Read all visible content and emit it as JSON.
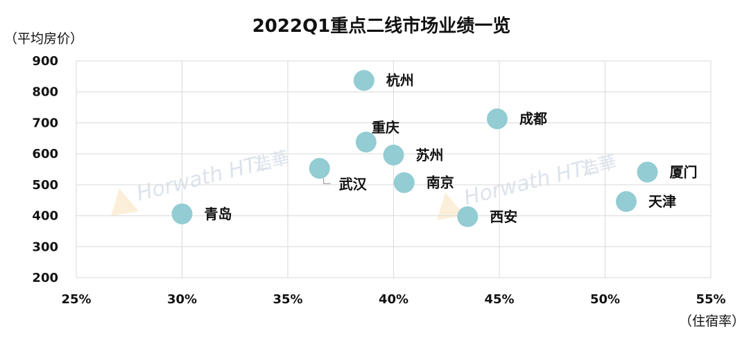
{
  "chart_data": {
    "type": "scatter",
    "title": "2022Q1重点二线市场业绩一览",
    "ylabel": "（平均房价）",
    "xlabel": "（住宿率）",
    "xlim": [
      0.25,
      0.55
    ],
    "ylim": [
      200,
      900
    ],
    "x_ticks": [
      {
        "value": 0.25,
        "label": "25%"
      },
      {
        "value": 0.3,
        "label": "30%"
      },
      {
        "value": 0.35,
        "label": "35%"
      },
      {
        "value": 0.4,
        "label": "40%"
      },
      {
        "value": 0.45,
        "label": "45%"
      },
      {
        "value": 0.5,
        "label": "50%"
      },
      {
        "value": 0.55,
        "label": "55%"
      }
    ],
    "y_ticks": [
      {
        "value": 200,
        "label": "200"
      },
      {
        "value": 300,
        "label": "300"
      },
      {
        "value": 400,
        "label": "400"
      },
      {
        "value": 500,
        "label": "500"
      },
      {
        "value": 600,
        "label": "600"
      },
      {
        "value": 700,
        "label": "700"
      },
      {
        "value": 800,
        "label": "800"
      },
      {
        "value": 900,
        "label": "900"
      }
    ],
    "grid": true,
    "marker_color": "#93ccd3",
    "grid_color": "#d9d9d9",
    "points": [
      {
        "label": "杭州",
        "x": 0.386,
        "y": 837,
        "label_pos": "right"
      },
      {
        "label": "成都",
        "x": 0.449,
        "y": 713,
        "label_pos": "right"
      },
      {
        "label": "重庆",
        "x": 0.387,
        "y": 638,
        "label_pos": "above"
      },
      {
        "label": "苏州",
        "x": 0.4,
        "y": 596,
        "label_pos": "right"
      },
      {
        "label": "武汉",
        "x": 0.365,
        "y": 553,
        "label_pos": "below-right"
      },
      {
        "label": "南京",
        "x": 0.405,
        "y": 507,
        "label_pos": "right"
      },
      {
        "label": "厦门",
        "x": 0.52,
        "y": 541,
        "label_pos": "right"
      },
      {
        "label": "天津",
        "x": 0.51,
        "y": 446,
        "label_pos": "right"
      },
      {
        "label": "青岛",
        "x": 0.3,
        "y": 406,
        "label_pos": "right"
      },
      {
        "label": "西安",
        "x": 0.435,
        "y": 397,
        "label_pos": "right"
      }
    ]
  },
  "watermark": {
    "text": "Horwath HTL",
    "cn": "浩華"
  }
}
